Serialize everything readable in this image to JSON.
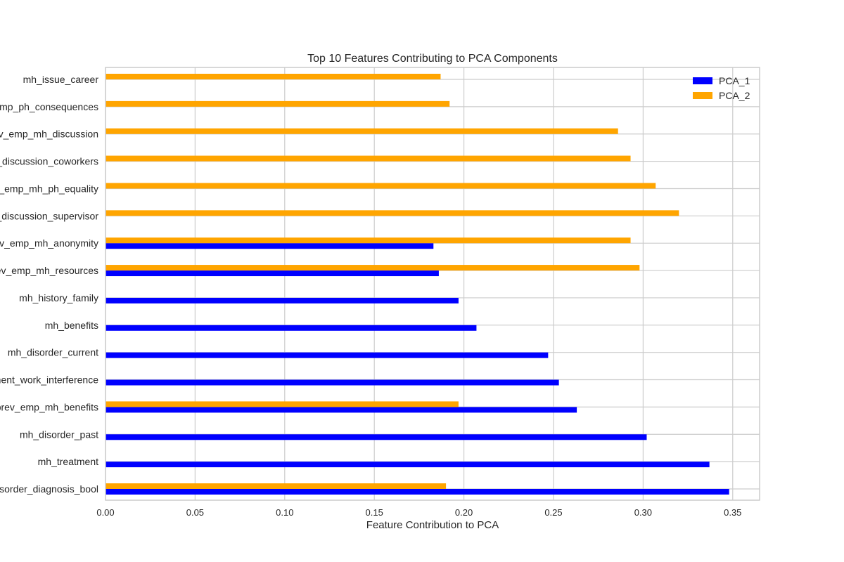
{
  "chart_data": {
    "type": "bar",
    "orientation": "horizontal",
    "title": "Top 10 Features Contributing to PCA Components",
    "xlabel": "Feature Contribution to PCA",
    "ylabel": "",
    "xlim": [
      0.0,
      0.365
    ],
    "xticks": [
      0.0,
      0.05,
      0.1,
      0.15,
      0.2,
      0.25,
      0.3,
      0.35
    ],
    "xtick_labels": [
      "0.00",
      "0.05",
      "0.10",
      "0.15",
      "0.20",
      "0.25",
      "0.30",
      "0.35"
    ],
    "grid": true,
    "legend_position": "top-right",
    "categories": [
      "mh_disorder_diagnosis_bool",
      "mh_treatment",
      "mh_disorder_past",
      "prev_emp_mh_benefits",
      "mh_current_employment_work_interference",
      "mh_disorder_current",
      "mh_benefits",
      "mh_history_family",
      "prev_emp_mh_resources",
      "prev_emp_mh_anonymity",
      "prev_emp_mh_discussion_supervisor",
      "prev_emp_mh_ph_equality",
      "prev_emp_mh_discussion_coworkers",
      "prev_emp_mh_discussion",
      "prev_emp_ph_consequences",
      "mh_issue_career"
    ],
    "series": [
      {
        "name": "PCA_1",
        "color": "#0000ff",
        "values": [
          0.348,
          0.337,
          0.302,
          0.263,
          0.253,
          0.247,
          0.207,
          0.197,
          0.186,
          0.183,
          null,
          null,
          null,
          null,
          null,
          null
        ]
      },
      {
        "name": "PCA_2",
        "color": "#ffa500",
        "values": [
          0.19,
          null,
          null,
          0.197,
          null,
          null,
          null,
          null,
          0.298,
          0.293,
          0.32,
          0.307,
          0.293,
          0.286,
          0.192,
          0.187
        ]
      }
    ]
  }
}
